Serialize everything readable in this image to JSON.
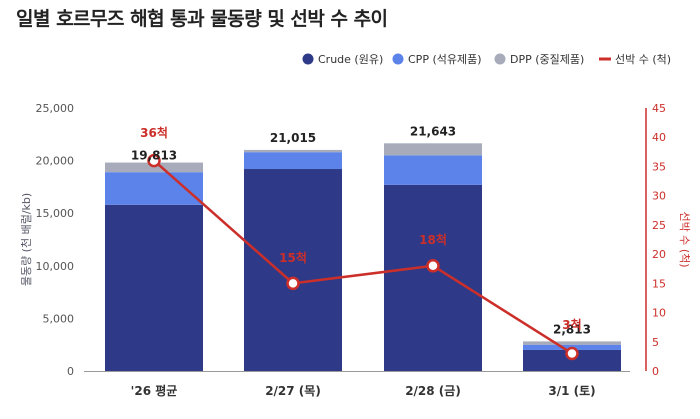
{
  "chart_data": {
    "type": "bar",
    "title": "일별 호르무즈 해협 통과 물동량 및 선박 수 추이",
    "categories": [
      "'26 평균",
      "2/27 (목)",
      "2/28 (금)",
      "3/1 (토)"
    ],
    "series": [
      {
        "name": "Crude (원유)",
        "color": "#2e3a87",
        "values": [
          15800,
          19200,
          17700,
          2000
        ]
      },
      {
        "name": "CPP (석유제품)",
        "color": "#5b83ea",
        "values": [
          3100,
          1600,
          2800,
          500
        ]
      },
      {
        "name": "DPP (중질제품)",
        "color": "#a7abba",
        "values": [
          913,
          215,
          1143,
          313
        ]
      }
    ],
    "totals": [
      "19,813",
      "21,015",
      "21,643",
      "2,813"
    ],
    "line_series": {
      "name": "선박 수 (척)",
      "color": "#cc2f2a",
      "values": [
        36,
        15,
        18,
        3
      ],
      "labels": [
        "36척",
        "15척",
        "18척",
        "3척"
      ]
    },
    "ylabel": "물동량 (천 배럴/kb)",
    "y2label": "선박 수 (척)",
    "ylim": [
      0,
      25000
    ],
    "yticks": [
      "0",
      "5,000",
      "10,000",
      "15,000",
      "20,000",
      "25,000"
    ],
    "y2lim": [
      0,
      45
    ],
    "y2ticks": [
      "0",
      "5",
      "10",
      "15",
      "20",
      "25",
      "30",
      "35",
      "40",
      "45"
    ],
    "legend_position": "top-right",
    "grid": false
  }
}
